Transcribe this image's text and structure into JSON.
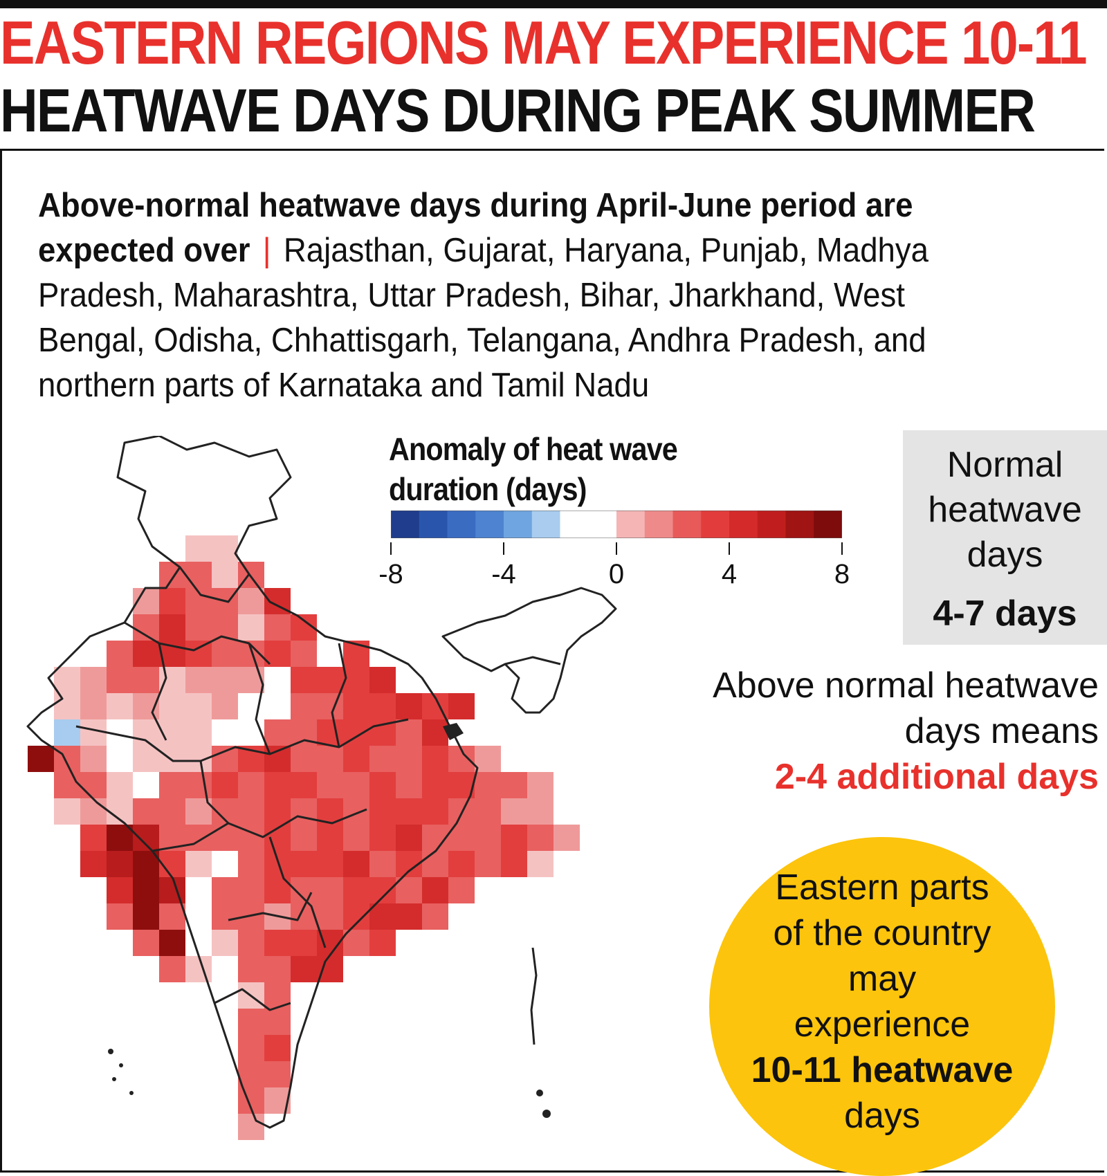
{
  "headline": {
    "line1": "EASTERN REGIONS MAY EXPERIENCE 10-11",
    "line2": "HEATWAVE DAYS DURING PEAK SUMMER"
  },
  "intro": {
    "lead": "Above-normal heatwave days during April-June period are expected over",
    "separator": "|",
    "regions": "Rajasthan, Gujarat, Haryana, Punjab, Madhya Pradesh, Maharashtra, Uttar Pradesh, Bihar, Jharkhand, West Bengal, Odisha, Chhattisgarh, Telangana, Andhra Pradesh, and northern parts of Karnataka and Tamil Nadu"
  },
  "legend": {
    "title": "Anomaly of heat wave duration (days)",
    "ticks": [
      "-8",
      "-4",
      "0",
      "4",
      "8"
    ],
    "range": [
      -8,
      8
    ],
    "colors": [
      "#1f3d8c",
      "#2a55ad",
      "#3a6cc2",
      "#4d83d0",
      "#6fa5e0",
      "#a9ccef",
      "#ffffff",
      "#ffffff",
      "#f5b5b5",
      "#ef8a8a",
      "#e85a5a",
      "#e23c3c",
      "#d42a2a",
      "#c01e1e",
      "#a01414",
      "#7e0c0c"
    ]
  },
  "normal_box": {
    "label": "Normal heatwave days",
    "value": "4-7 days"
  },
  "above_normal": {
    "text": "Above normal heatwave days means",
    "value": "2-4 additional days"
  },
  "callout": {
    "text": "Eastern parts of the country may experience",
    "bold": "10-11 heatwave",
    "tail": "days"
  },
  "map": {
    "style": {
      "outline": "#222222",
      "palette": {
        "0": "#ffffff",
        "1": "#f5c2c2",
        "2": "#ef9a9a",
        "3": "#e86060",
        "4": "#e23e3e",
        "5": "#d42c2c",
        "6": "#b81c1c",
        "7": "#8e0e0e",
        "b": "#a8ccef"
      }
    },
    "grid": [
      "......................",
      "......................",
      "......................",
      "......11..............",
      ".....3313.............",
      "....243325............",
      "....3533134...........",
      "...35543343.4.........",
      ".1233122204445........",
      ".1212112003344545......",
      ".b10111003344435......",
      "732011134533433432.....",
      ".3310334344334344332...",
      ".1213323343434443322...",
      "..4763333434345333432..",
      "..567410344453434341...",
      "...57603343344353.......",
      "...3730332334553........",
      "....3701344534..........",
      ".....3103355............",
      "........13..............",
      "........33..............",
      "........34..............",
      "........33..............",
      "........32..............",
      "........2..............."
    ]
  }
}
